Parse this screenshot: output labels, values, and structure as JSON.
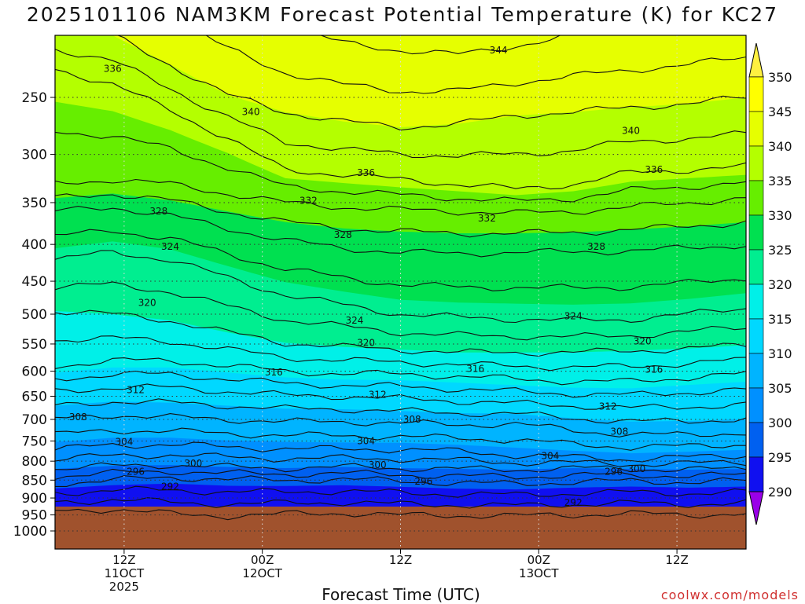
{
  "chart_data": {
    "type": "heatmap",
    "title": "2025101106 NAM3KM Forecast Potential Temperature (K) for KC27",
    "xlabel": "Forecast Time (UTC)",
    "ylabel": "",
    "y_axis_ticks": [
      250,
      300,
      350,
      400,
      450,
      500,
      550,
      600,
      650,
      700,
      750,
      800,
      850,
      900,
      950,
      1000
    ],
    "y_axis_inverted_log": true,
    "x_axis_ticks": [
      {
        "hour": 6,
        "line1": "12Z",
        "line2": "11OCT",
        "line3": "2025"
      },
      {
        "hour": 18,
        "line1": "00Z",
        "line2": "12OCT",
        "line3": ""
      },
      {
        "hour": 30,
        "line1": "12Z",
        "line2": "",
        "line3": ""
      },
      {
        "hour": 42,
        "line1": "00Z",
        "line2": "13OCT",
        "line3": ""
      },
      {
        "hour": 54,
        "line1": "12Z",
        "line2": "",
        "line3": ""
      }
    ],
    "x_range_hours": [
      0,
      60
    ],
    "colorbar": {
      "min": 290,
      "max": 350,
      "step": 5,
      "labels": [
        350,
        345,
        340,
        335,
        330,
        325,
        320,
        315,
        310,
        305,
        300,
        295,
        290
      ],
      "colors": [
        "#ffff00",
        "#e6ff00",
        "#b4ff00",
        "#66ee00",
        "#00e050",
        "#00ee90",
        "#00f0e8",
        "#00d8ff",
        "#00b4ff",
        "#0090ff",
        "#0060f0",
        "#1010f0",
        "#5000e0",
        "#9a00e8",
        "#fff040"
      ]
    },
    "ground_color": "#a0522d",
    "ground_pressure": 925,
    "contour_levels": [
      292,
      296,
      300,
      304,
      308,
      312,
      316,
      320,
      324,
      328,
      332,
      336,
      340,
      344
    ],
    "contour_profile": [
      {
        "level": 292,
        "pressure": [
          912,
          905,
          912,
          918,
          915,
          912,
          918,
          920,
          922,
          918,
          915,
          918,
          915
        ]
      },
      {
        "level": 296,
        "pressure": [
          860,
          850,
          842,
          848,
          850,
          848,
          852,
          858,
          860,
          855,
          852,
          855,
          852
        ]
      },
      {
        "level": 300,
        "pressure": [
          820,
          812,
          810,
          815,
          818,
          815,
          818,
          820,
          822,
          818,
          820,
          822,
          820
        ]
      },
      {
        "level": 304,
        "pressure": [
          770,
          760,
          758,
          765,
          768,
          770,
          770,
          775,
          785,
          790,
          795,
          790,
          785
        ]
      },
      {
        "level": 308,
        "pressure": [
          700,
          690,
          695,
          700,
          705,
          705,
          708,
          712,
          710,
          725,
          735,
          735,
          730
        ]
      },
      {
        "level": 312,
        "pressure": [
          640,
          632,
          632,
          640,
          648,
          650,
          655,
          660,
          665,
          670,
          675,
          672,
          668
        ]
      },
      {
        "level": 316,
        "pressure": [
          590,
          580,
          580,
          590,
          600,
          605,
          605,
          610,
          615,
          620,
          620,
          612,
          605
        ]
      },
      {
        "level": 320,
        "pressure": [
          495,
          500,
          510,
          530,
          548,
          555,
          560,
          565,
          565,
          565,
          562,
          558,
          552
        ]
      },
      {
        "level": 324,
        "pressure": [
          420,
          410,
          420,
          445,
          470,
          485,
          500,
          505,
          508,
          510,
          508,
          500,
          490
        ]
      },
      {
        "level": 328,
        "pressure": [
          360,
          355,
          365,
          380,
          395,
          405,
          410,
          412,
          410,
          410,
          408,
          405,
          400
        ]
      },
      {
        "level": 332,
        "pressure": [
          330,
          325,
          330,
          340,
          350,
          355,
          358,
          360,
          362,
          360,
          355,
          350,
          345
        ]
      },
      {
        "level": 336,
        "pressure": [
          228,
          240,
          260,
          285,
          315,
          320,
          325,
          330,
          335,
          330,
          318,
          315,
          312
        ]
      },
      {
        "level": 340,
        "pressure": [
          200,
          205,
          225,
          248,
          262,
          270,
          275,
          272,
          265,
          262,
          258,
          255,
          250
        ]
      },
      {
        "level": 344,
        "pressure": [
          150,
          150,
          160,
          180,
          200,
          210,
          215,
          218,
          212,
          205,
          200,
          195,
          190
        ]
      }
    ],
    "contour_label_positions": [
      {
        "level": 336,
        "hour": 5,
        "p": 228
      },
      {
        "level": 340,
        "hour": 17,
        "p": 262
      },
      {
        "level": 344,
        "hour": 38.5,
        "p": 215
      },
      {
        "level": 340,
        "hour": 50,
        "p": 278
      },
      {
        "level": 336,
        "hour": 27,
        "p": 318
      },
      {
        "level": 336,
        "hour": 52,
        "p": 315
      },
      {
        "level": 332,
        "hour": 22,
        "p": 348
      },
      {
        "level": 332,
        "hour": 37.5,
        "p": 368
      },
      {
        "level": 328,
        "hour": 9,
        "p": 360
      },
      {
        "level": 328,
        "hour": 25,
        "p": 388
      },
      {
        "level": 328,
        "hour": 47,
        "p": 403
      },
      {
        "level": 324,
        "hour": 10,
        "p": 403
      },
      {
        "level": 320,
        "hour": 8,
        "p": 482
      },
      {
        "level": 324,
        "hour": 26,
        "p": 510
      },
      {
        "level": 324,
        "hour": 45,
        "p": 503
      },
      {
        "level": 320,
        "hour": 27,
        "p": 548
      },
      {
        "level": 320,
        "hour": 51,
        "p": 545
      },
      {
        "level": 316,
        "hour": 19,
        "p": 602
      },
      {
        "level": 316,
        "hour": 36.5,
        "p": 595
      },
      {
        "level": 316,
        "hour": 52,
        "p": 597
      },
      {
        "level": 312,
        "hour": 7,
        "p": 637
      },
      {
        "level": 312,
        "hour": 28,
        "p": 647
      },
      {
        "level": 312,
        "hour": 48,
        "p": 672
      },
      {
        "level": 308,
        "hour": 2,
        "p": 695
      },
      {
        "level": 308,
        "hour": 31,
        "p": 700
      },
      {
        "level": 308,
        "hour": 49,
        "p": 728
      },
      {
        "level": 304,
        "hour": 6,
        "p": 752
      },
      {
        "level": 304,
        "hour": 27,
        "p": 750
      },
      {
        "level": 304,
        "hour": 43,
        "p": 787
      },
      {
        "level": 300,
        "hour": 12,
        "p": 806
      },
      {
        "level": 300,
        "hour": 28,
        "p": 810
      },
      {
        "level": 300,
        "hour": 50.5,
        "p": 820
      },
      {
        "level": 296,
        "hour": 7,
        "p": 827
      },
      {
        "level": 296,
        "hour": 32,
        "p": 854
      },
      {
        "level": 296,
        "hour": 48.5,
        "p": 827
      },
      {
        "level": 292,
        "hour": 10,
        "p": 868
      },
      {
        "level": 292,
        "hour": 45,
        "p": 913
      }
    ]
  },
  "credit": "coolwx.com/models"
}
